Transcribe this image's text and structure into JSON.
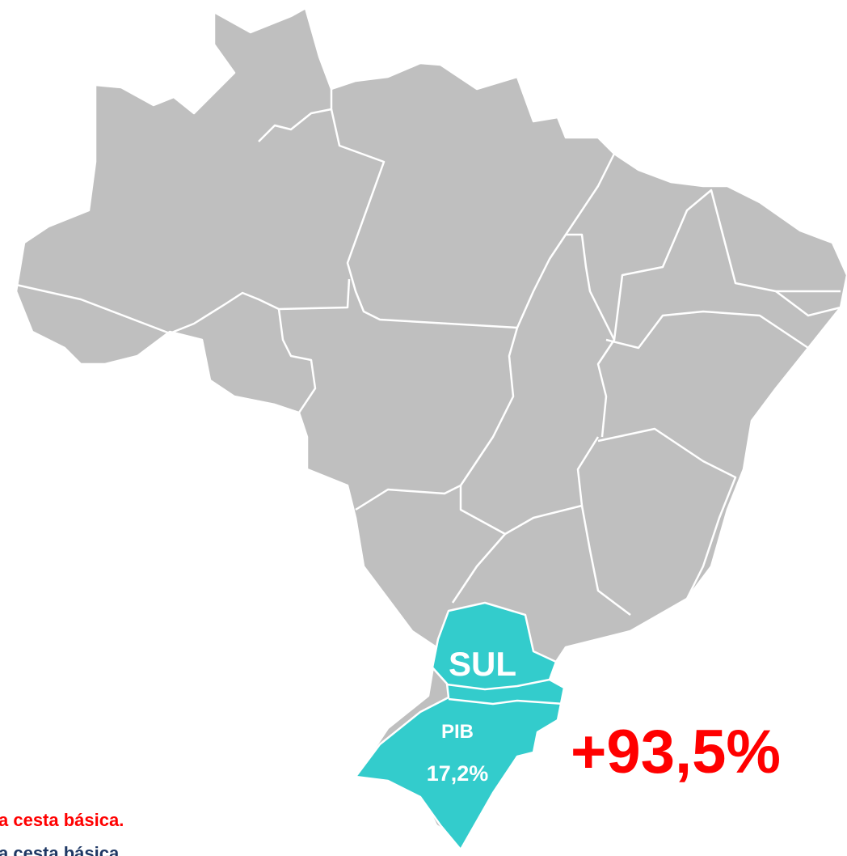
{
  "map": {
    "region_label": "SUL",
    "pib_label": "PIB",
    "pib_value": "17,2%",
    "highlight_value": "+93,5%",
    "notes": [
      "a cesta básica.",
      "a cesta básica"
    ]
  }
}
